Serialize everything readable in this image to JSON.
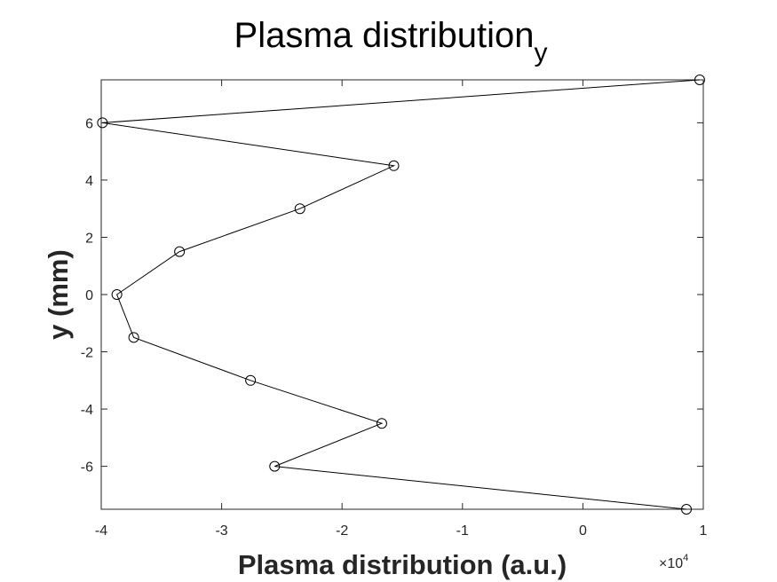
{
  "chart_data": {
    "type": "line",
    "title": "Plasma distribution",
    "title_subscript": "y",
    "xlabel": "Plasma distribution (a.u.)",
    "ylabel": "y (mm)",
    "x_multiplier_label": "×10",
    "x_multiplier_exponent": "4",
    "xlim": [
      -4,
      1
    ],
    "ylim": [
      -7.5,
      7.5
    ],
    "x_ticks": [
      -4,
      -3,
      -2,
      -1,
      0,
      1
    ],
    "x_tick_labels": [
      "-4",
      "-3",
      "-2",
      "-1",
      "0",
      "1"
    ],
    "y_ticks": [
      -6,
      -4,
      -2,
      0,
      2,
      4,
      6
    ],
    "y_tick_labels": [
      "-6",
      "-4",
      "-2",
      "0",
      "2",
      "4",
      "6"
    ],
    "grid": false,
    "marker": "circle",
    "line_color": "#000000",
    "series": [
      {
        "points": [
          {
            "x": 0.97,
            "y": 7.5
          },
          {
            "x": -3.99,
            "y": 6.0
          },
          {
            "x": -1.57,
            "y": 4.5
          },
          {
            "x": -2.35,
            "y": 3.0
          },
          {
            "x": -3.35,
            "y": 1.5
          },
          {
            "x": -3.87,
            "y": 0.0
          },
          {
            "x": -3.73,
            "y": -1.5
          },
          {
            "x": -2.76,
            "y": -3.0
          },
          {
            "x": -1.67,
            "y": -4.5
          },
          {
            "x": -2.56,
            "y": -6.0
          },
          {
            "x": 0.86,
            "y": -7.5
          }
        ]
      }
    ]
  }
}
